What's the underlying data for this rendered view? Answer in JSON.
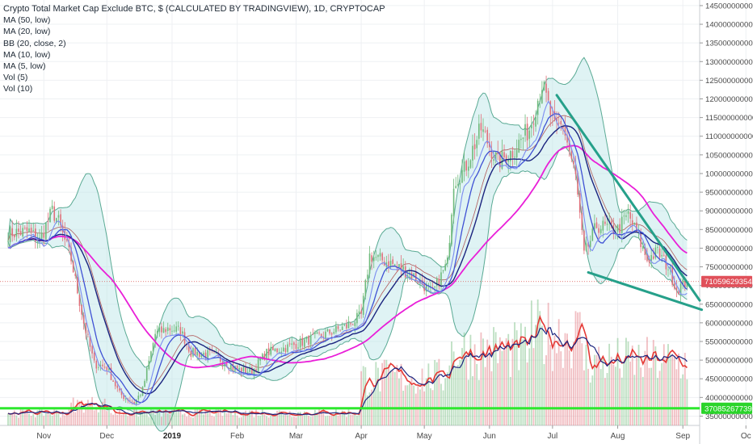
{
  "title": "Crypto Total Market Cap Exclude BTC, $ (CALCULATED BY TRADINGVIEW), 1D, CRYPTOCAP",
  "indicators": [
    "MA (50, low)",
    "MA (20, low)",
    "BB (20, close, 2)",
    "MA (10, low)",
    "MA (5, low)",
    "Vol (5)",
    "Vol (10)"
  ],
  "price_tag": "71059629354",
  "support_tag": "37085267739",
  "colors": {
    "up": "#6fba7b",
    "down": "#e0707a",
    "ma50": "#e91fd8",
    "ma20": "#1a237e",
    "ma10": "#3f51d4",
    "ma5": "#7b8cf0",
    "bb": "#5aaa94",
    "bb_fill": "#b9e4e6",
    "trend": "#26a08a",
    "support": "#2ee82e",
    "vol5": "#e53935",
    "vol10": "#1a237e"
  },
  "chart_data": {
    "type": "candlestick",
    "title": "Crypto Total Market Cap Exclude BTC, $ (CALCULATED BY TRADINGVIEW), 1D, CRYPTOCAP",
    "x_ticks": [
      "Nov",
      "Dec",
      "2019",
      "Feb",
      "Mar",
      "Apr",
      "May",
      "Jun",
      "Jul",
      "Aug",
      "Sep",
      "Oc"
    ],
    "y_ticks": [
      35000000000,
      40000000000,
      45000000000,
      50000000000,
      55000000000,
      60000000000,
      65000000000,
      70000000000,
      75000000000,
      80000000000,
      85000000000,
      90000000000,
      95000000000,
      100000000000,
      105000000000,
      110000000000,
      115000000000,
      120000000000,
      125000000000,
      130000000000,
      135000000000,
      140000000000,
      145000000000
    ],
    "ylim": [
      32500000000,
      146500000000
    ],
    "last_price": 71059629354,
    "support_level": 37085267739,
    "close_anchors": [
      [
        "Oct 15",
        84000000000
      ],
      [
        "Oct 25",
        84500000000
      ],
      [
        "Oct 30",
        82000000000
      ],
      [
        "Nov 5",
        90000000000
      ],
      [
        "Nov 8",
        87000000000
      ],
      [
        "Nov 14",
        77000000000
      ],
      [
        "Nov 20",
        60000000000
      ],
      [
        "Nov 25",
        49000000000
      ],
      [
        "Dec 1",
        48000000000
      ],
      [
        "Dec 7",
        41000000000
      ],
      [
        "Dec 14",
        38500000000
      ],
      [
        "Dec 18",
        42000000000
      ],
      [
        "Dec 24",
        57000000000
      ],
      [
        "Dec 30",
        58500000000
      ],
      [
        "Jan 5",
        58000000000
      ],
      [
        "Jan 10",
        52000000000
      ],
      [
        "Jan 20",
        51500000000
      ],
      [
        "Feb 1",
        47500000000
      ],
      [
        "Feb 8",
        47000000000
      ],
      [
        "Feb 15",
        52000000000
      ],
      [
        "Feb 25",
        53500000000
      ],
      [
        "Mar 10",
        56000000000
      ],
      [
        "Mar 25",
        59000000000
      ],
      [
        "Apr 1",
        62000000000
      ],
      [
        "Apr 5",
        78000000000
      ],
      [
        "Apr 15",
        76000000000
      ],
      [
        "Apr 25",
        73000000000
      ],
      [
        "May 5",
        68000000000
      ],
      [
        "May 12",
        76000000000
      ],
      [
        "May 15",
        98000000000
      ],
      [
        "May 20",
        101000000000
      ],
      [
        "May 28",
        112000000000
      ],
      [
        "Jun 5",
        103000000000
      ],
      [
        "Jun 12",
        106000000000
      ],
      [
        "Jun 20",
        112000000000
      ],
      [
        "Jun 26",
        124000000000
      ],
      [
        "Jul 2",
        112000000000
      ],
      [
        "Jul 6",
        113000000000
      ],
      [
        "Jul 12",
        99000000000
      ],
      [
        "Jul 16",
        78000000000
      ],
      [
        "Jul 22",
        86000000000
      ],
      [
        "Aug 1",
        85000000000
      ],
      [
        "Aug 6",
        89000000000
      ],
      [
        "Aug 10",
        84000000000
      ],
      [
        "Aug 15",
        77000000000
      ],
      [
        "Aug 20",
        79000000000
      ],
      [
        "Aug 25",
        75000000000
      ],
      [
        "Aug 29",
        69000000000
      ],
      [
        "Sep 3",
        71000000000
      ]
    ],
    "trendlines": [
      {
        "name": "upper",
        "from": [
          "Jul 3",
          121000000000
        ],
        "to": [
          "Sep 9",
          66000000000
        ]
      },
      {
        "name": "lower",
        "from": [
          "Jul 18",
          73500000000
        ],
        "to": [
          "Sep 10",
          63500000000
        ]
      }
    ],
    "series": [
      {
        "name": "MA (50, low)"
      },
      {
        "name": "MA (20, low)"
      },
      {
        "name": "BB (20, close, 2)"
      },
      {
        "name": "MA (10, low)"
      },
      {
        "name": "MA (5, low)"
      },
      {
        "name": "Vol (5)"
      },
      {
        "name": "Vol (10)"
      }
    ]
  }
}
